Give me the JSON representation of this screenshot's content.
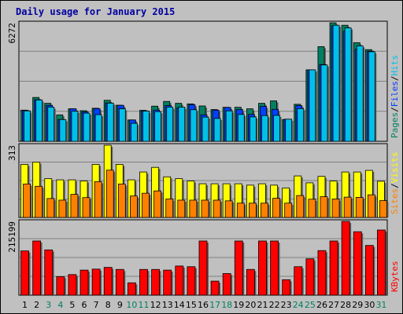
{
  "title": "Daily usage for January 2015",
  "colors": {
    "hits": "#00c0e8",
    "files": "#0040ff",
    "pages": "#008060",
    "visits": "#ffff00",
    "sites": "#ff8000",
    "kbytes": "#ff0000",
    "panel": "#c0c0c0",
    "weekend": "#008060",
    "weekday": "#000000"
  },
  "chart_data": [
    {
      "type": "bar",
      "panel": "top",
      "ymax_label": "6272",
      "ylim": [
        0,
        6272
      ],
      "legend": [
        "Pages",
        "Files",
        "Hits"
      ],
      "x": [
        1,
        2,
        3,
        4,
        5,
        6,
        7,
        8,
        9,
        10,
        11,
        12,
        13,
        14,
        15,
        16,
        17,
        18,
        19,
        20,
        21,
        22,
        23,
        24,
        25,
        26,
        27,
        28,
        29,
        30,
        31
      ],
      "series": [
        {
          "name": "Hits",
          "values": [
            1610,
            2190,
            1810,
            1150,
            1590,
            1490,
            1410,
            2020,
            1720,
            950,
            1600,
            1570,
            1810,
            1810,
            1670,
            1280,
            1210,
            1610,
            1420,
            1290,
            1360,
            1370,
            1170,
            1730,
            3780,
            4040,
            6140,
            6000,
            5050,
            4740,
            0
          ]
        },
        {
          "name": "Files",
          "values": [
            1630,
            2200,
            1900,
            1150,
            1720,
            1560,
            1730,
            2030,
            1900,
            1130,
            1610,
            1650,
            1890,
            1770,
            1940,
            1400,
            1650,
            1790,
            1680,
            1420,
            1850,
            1690,
            1170,
            1890,
            3780,
            4060,
            6110,
            5820,
            4870,
            4770,
            0
          ]
        },
        {
          "name": "Pages",
          "values": [
            1650,
            2320,
            2010,
            1400,
            1720,
            1620,
            1750,
            2170,
            1910,
            1130,
            1640,
            1860,
            2110,
            2010,
            1980,
            1870,
            1680,
            1800,
            1800,
            1720,
            2010,
            2140,
            1150,
            1960,
            3780,
            5010,
            6270,
            6140,
            5220,
            4850,
            0
          ]
        }
      ]
    },
    {
      "type": "bar",
      "panel": "middle",
      "ymax_label": "313",
      "ylim": [
        0,
        313
      ],
      "legend": [
        "Sites",
        "Visits"
      ],
      "x": [
        1,
        2,
        3,
        4,
        5,
        6,
        7,
        8,
        9,
        10,
        11,
        12,
        13,
        14,
        15,
        16,
        17,
        18,
        19,
        20,
        21,
        22,
        23,
        24,
        25,
        26,
        27,
        28,
        29,
        30,
        31
      ],
      "series": [
        {
          "name": "Visits",
          "values": [
            230,
            240,
            168,
            163,
            163,
            158,
            230,
            313,
            230,
            163,
            197,
            217,
            176,
            168,
            158,
            146,
            146,
            146,
            146,
            140,
            146,
            140,
            128,
            180,
            150,
            178,
            158,
            197,
            197,
            204,
            157
          ]
        },
        {
          "name": "Sites",
          "values": [
            145,
            135,
            82,
            75,
            100,
            86,
            155,
            205,
            145,
            93,
            105,
            115,
            80,
            75,
            75,
            75,
            75,
            72,
            62,
            62,
            62,
            83,
            62,
            95,
            79,
            90,
            80,
            88,
            87,
            98,
            73
          ]
        }
      ]
    },
    {
      "type": "bar",
      "panel": "bottom",
      "ymax_label": "215199",
      "ylim": [
        0,
        215199
      ],
      "legend": [
        "KBytes"
      ],
      "x": [
        1,
        2,
        3,
        4,
        5,
        6,
        7,
        8,
        9,
        10,
        11,
        12,
        13,
        14,
        15,
        16,
        17,
        18,
        19,
        20,
        21,
        22,
        23,
        24,
        25,
        26,
        27,
        28,
        29,
        30,
        31
      ],
      "series": [
        {
          "name": "KBytes",
          "values": [
            129000,
            158000,
            132000,
            54000,
            60000,
            73000,
            76000,
            81000,
            75000,
            36000,
            75000,
            75000,
            73000,
            85000,
            83000,
            158000,
            41000,
            63000,
            158000,
            75000,
            158000,
            158000,
            45000,
            83000,
            106000,
            130000,
            158000,
            215199,
            185000,
            145000,
            190000
          ]
        }
      ]
    }
  ],
  "days": [
    {
      "label": "1",
      "weekend": false
    },
    {
      "label": "2",
      "weekend": false
    },
    {
      "label": "3",
      "weekend": true
    },
    {
      "label": "4",
      "weekend": true
    },
    {
      "label": "5",
      "weekend": false
    },
    {
      "label": "6",
      "weekend": false
    },
    {
      "label": "7",
      "weekend": false
    },
    {
      "label": "8",
      "weekend": false
    },
    {
      "label": "9",
      "weekend": false
    },
    {
      "label": "10",
      "weekend": true
    },
    {
      "label": "11",
      "weekend": true
    },
    {
      "label": "12",
      "weekend": false
    },
    {
      "label": "13",
      "weekend": false
    },
    {
      "label": "14",
      "weekend": false
    },
    {
      "label": "15",
      "weekend": false
    },
    {
      "label": "16",
      "weekend": false
    },
    {
      "label": "17",
      "weekend": true
    },
    {
      "label": "18",
      "weekend": true
    },
    {
      "label": "19",
      "weekend": false
    },
    {
      "label": "20",
      "weekend": false
    },
    {
      "label": "21",
      "weekend": false
    },
    {
      "label": "22",
      "weekend": false
    },
    {
      "label": "23",
      "weekend": false
    },
    {
      "label": "24",
      "weekend": true
    },
    {
      "label": "25",
      "weekend": true
    },
    {
      "label": "26",
      "weekend": false
    },
    {
      "label": "27",
      "weekend": false
    },
    {
      "label": "28",
      "weekend": false
    },
    {
      "label": "29",
      "weekend": false
    },
    {
      "label": "30",
      "weekend": false
    },
    {
      "label": "31",
      "weekend": true
    }
  ],
  "right_labels": {
    "top": [
      "Pages",
      "/",
      "Files",
      "/",
      "Hits"
    ],
    "middle": [
      "Sites",
      "/",
      "Visits"
    ],
    "bottom": [
      "KBytes"
    ]
  }
}
